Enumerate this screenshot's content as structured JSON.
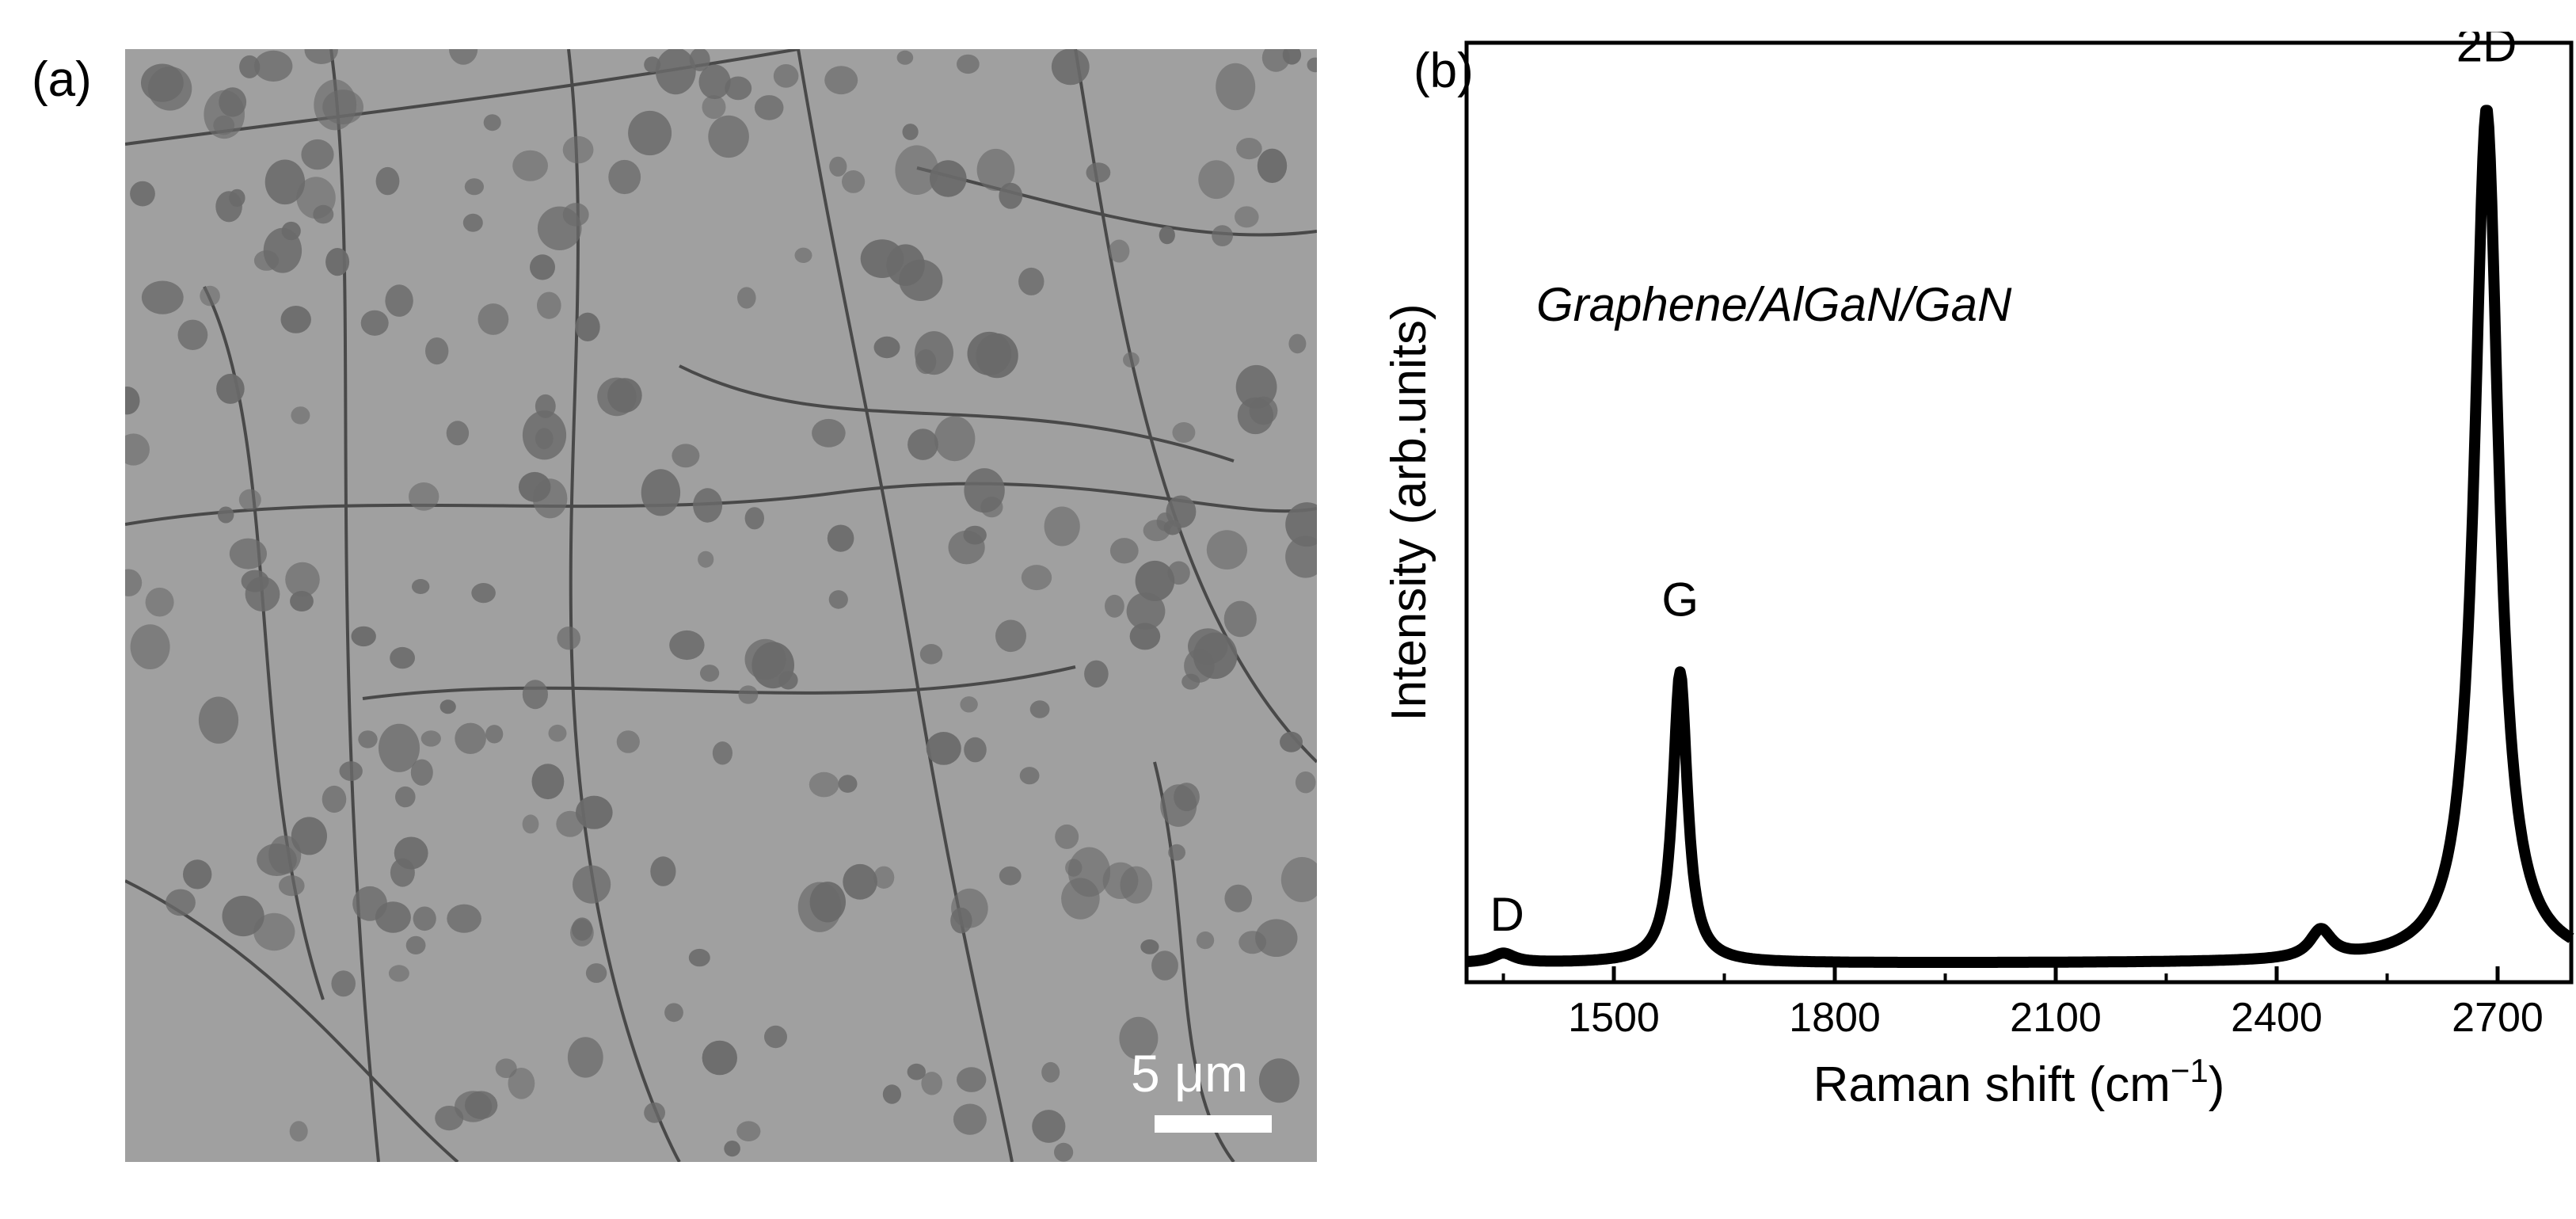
{
  "panel_a": {
    "label": "(a)",
    "scalebar_text": "5 μm"
  },
  "panel_b": {
    "label": "(b)",
    "annotation": "Graphene/AlGaN/GaN"
  },
  "chart_data": {
    "type": "line",
    "xlabel": "Raman shift (cm",
    "xlabel_superscript": "−1",
    "xlabel_suffix": ")",
    "ylabel": "Intensity (arb.units)",
    "xlim": [
      1300,
      2800
    ],
    "ylim": [
      0,
      1.0
    ],
    "xticks": [
      1500,
      1800,
      2100,
      2400,
      2700
    ],
    "ytick_labels_shown": false,
    "grid": false,
    "legend": "none",
    "series": [
      {
        "color": "#000000",
        "peaks": [
          {
            "center": 1350,
            "height": 0.01,
            "width": 18
          },
          {
            "center": 1590,
            "height": 0.31,
            "width": 12
          },
          {
            "center": 2460,
            "height": 0.03,
            "width": 18
          },
          {
            "center": 2685,
            "height": 0.91,
            "width": 20
          }
        ],
        "baseline": 0.02
      }
    ],
    "peak_labels": [
      {
        "text": "D",
        "x": 1355,
        "y": 0.055
      },
      {
        "text": "G",
        "x": 1590,
        "y": 0.39
      },
      {
        "text": "2D",
        "x": 2685,
        "y": 0.98
      }
    ]
  }
}
